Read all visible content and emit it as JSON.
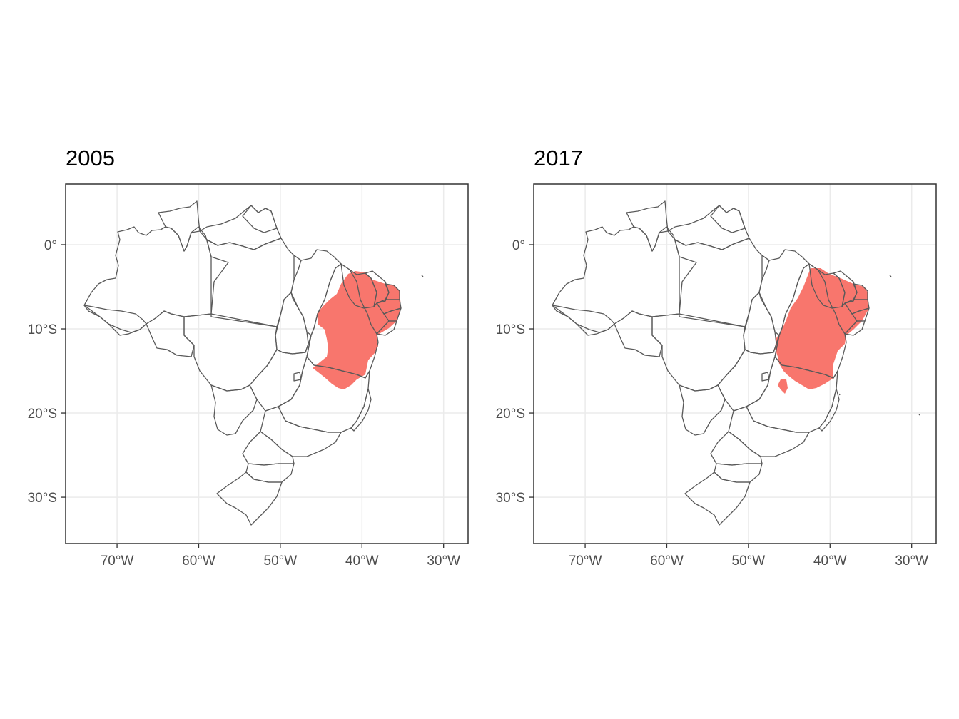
{
  "panels": [
    {
      "title": "2005",
      "extent": "2005"
    },
    {
      "title": "2017",
      "extent": "2017"
    }
  ],
  "axes": {
    "x_ticks": [
      "70°W",
      "60°W",
      "50°W",
      "40°W",
      "30°W"
    ],
    "y_ticks": [
      "0°",
      "10°S",
      "20°S",
      "30°S"
    ],
    "x_tick_values": [
      -70,
      -60,
      -50,
      -40,
      -30
    ],
    "y_tick_values": [
      0,
      -10,
      -20,
      -30
    ],
    "x_range": [
      -76.3,
      -27.0
    ],
    "y_range": [
      -35.5,
      7.2
    ]
  },
  "colors": {
    "fill": "#f8766d",
    "border": "#595959",
    "grid": "#ebebeb",
    "panel_border": "#333333"
  }
}
